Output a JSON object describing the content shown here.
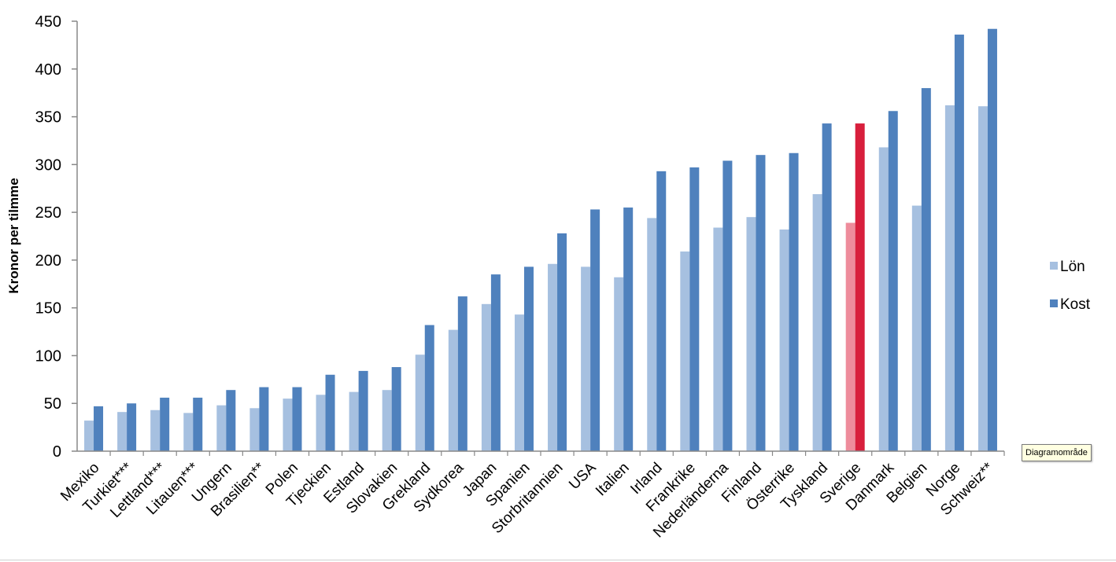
{
  "chart_data": {
    "type": "bar",
    "ylabel": "Kronor per tilmme",
    "xlabel": "",
    "ylim": [
      0,
      450
    ],
    "yticks": [
      0,
      50,
      100,
      150,
      200,
      250,
      300,
      350,
      400,
      450
    ],
    "grid": false,
    "legend_position": "right",
    "categories": [
      "Mexiko",
      "Turkiet***",
      "Lettland***",
      "Litauen***",
      "Ungern",
      "Brasilien**",
      "Polen",
      "Tjeckien",
      "Estland",
      "Slovakien",
      "Grekland",
      "Sydkorea",
      "Japan",
      "Spanien",
      "Storbritannien",
      "USA",
      "Italien",
      "Irland",
      "Frankrike",
      "Nederländerna",
      "Finland",
      "Österrike",
      "Tyskland",
      "Sverige",
      "Danmark",
      "Belgien",
      "Norge",
      "Schweiz**"
    ],
    "series": [
      {
        "name": "Lön",
        "color": "#a6c0e0",
        "highlight_color": "#ee8c9c",
        "values": [
          32,
          41,
          43,
          40,
          48,
          45,
          55,
          59,
          62,
          64,
          101,
          127,
          154,
          143,
          196,
          193,
          182,
          244,
          209,
          234,
          245,
          232,
          269,
          239,
          318,
          257,
          362,
          361
        ]
      },
      {
        "name": "Kost",
        "color": "#4f81bd",
        "highlight_color": "#d81f3c",
        "values": [
          47,
          50,
          56,
          56,
          64,
          67,
          67,
          80,
          84,
          88,
          132,
          162,
          185,
          193,
          228,
          253,
          255,
          293,
          297,
          304,
          310,
          312,
          343,
          343,
          356,
          380,
          436,
          442
        ]
      }
    ],
    "highlight_category": "Sverige"
  },
  "tooltip": {
    "text": "Diagramområde"
  }
}
